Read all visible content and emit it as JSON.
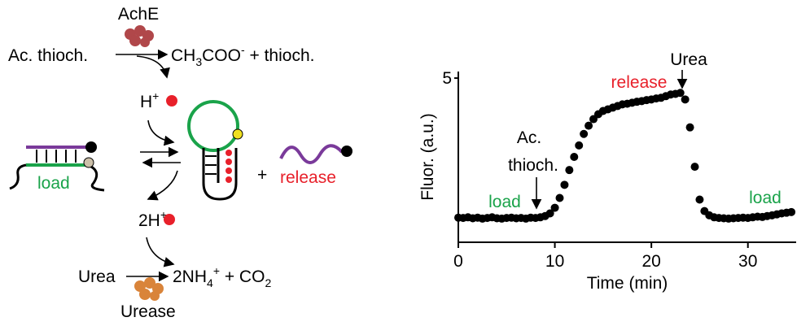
{
  "diagram": {
    "enzyme1": "AchE",
    "substrate1": "Ac. thioch.",
    "product1": [
      "CH",
      "3",
      "COO",
      "-",
      " + thioch."
    ],
    "proton1": [
      "H",
      "+"
    ],
    "plus": "+",
    "load": "load",
    "release": "release",
    "proton2": [
      "2H",
      "+"
    ],
    "substrate2": "Urea",
    "product2": [
      "2NH",
      "4",
      "+",
      " + CO",
      "2"
    ],
    "enzyme2": "Urease"
  },
  "chart_data": {
    "type": "scatter",
    "xlabel": "Time (min)",
    "ylabel": "Fluor. (a.u.)",
    "color": "#000000",
    "x": [
      0,
      0.5,
      1,
      1.5,
      2,
      2.5,
      3,
      3.5,
      4,
      4.5,
      5,
      5.5,
      6,
      6.5,
      7,
      7.5,
      8,
      8.5,
      9,
      9.5,
      10,
      10.5,
      11,
      11.5,
      12,
      12.5,
      13,
      13.5,
      14,
      14.5,
      15,
      15.5,
      16,
      16.5,
      17,
      17.5,
      18,
      18.5,
      19,
      19.5,
      20,
      20.5,
      21,
      21.5,
      22,
      22.5,
      23,
      23.5,
      24,
      24.5,
      25,
      25.5,
      26,
      26.5,
      27,
      27.5,
      28,
      28.5,
      29,
      29.5,
      30,
      30.5,
      31,
      31.5,
      32,
      32.5,
      33,
      33.5,
      34,
      34.5
    ],
    "values": [
      0.75,
      0.74,
      0.76,
      0.73,
      0.75,
      0.72,
      0.74,
      0.76,
      0.73,
      0.72,
      0.74,
      0.75,
      0.73,
      0.74,
      0.72,
      0.75,
      0.74,
      0.76,
      0.8,
      0.88,
      1.05,
      1.35,
      1.75,
      2.2,
      2.6,
      2.95,
      3.3,
      3.55,
      3.75,
      3.9,
      4.0,
      4.05,
      4.1,
      4.15,
      4.2,
      4.22,
      4.25,
      4.28,
      4.3,
      4.33,
      4.35,
      4.38,
      4.4,
      4.45,
      4.5,
      4.52,
      4.55,
      4.35,
      3.5,
      2.3,
      1.3,
      0.95,
      0.82,
      0.76,
      0.74,
      0.73,
      0.72,
      0.73,
      0.74,
      0.75,
      0.74,
      0.76,
      0.78,
      0.77,
      0.8,
      0.82,
      0.85,
      0.88,
      0.9,
      0.92
    ],
    "xlim": [
      0,
      35
    ],
    "ylim": [
      0,
      5.2
    ],
    "xticks": [
      0,
      10,
      20,
      30
    ],
    "yticks": [
      5
    ],
    "annotations": [
      {
        "text": "Ac.",
        "color": "#000000"
      },
      {
        "text": "thioch.",
        "color": "#000000"
      },
      {
        "text": "load",
        "color": "#1aa34a"
      },
      {
        "text": "release",
        "color": "#e8202a"
      },
      {
        "text": "Urea",
        "color": "#000000"
      },
      {
        "text": "load",
        "color": "#1aa34a"
      }
    ]
  }
}
